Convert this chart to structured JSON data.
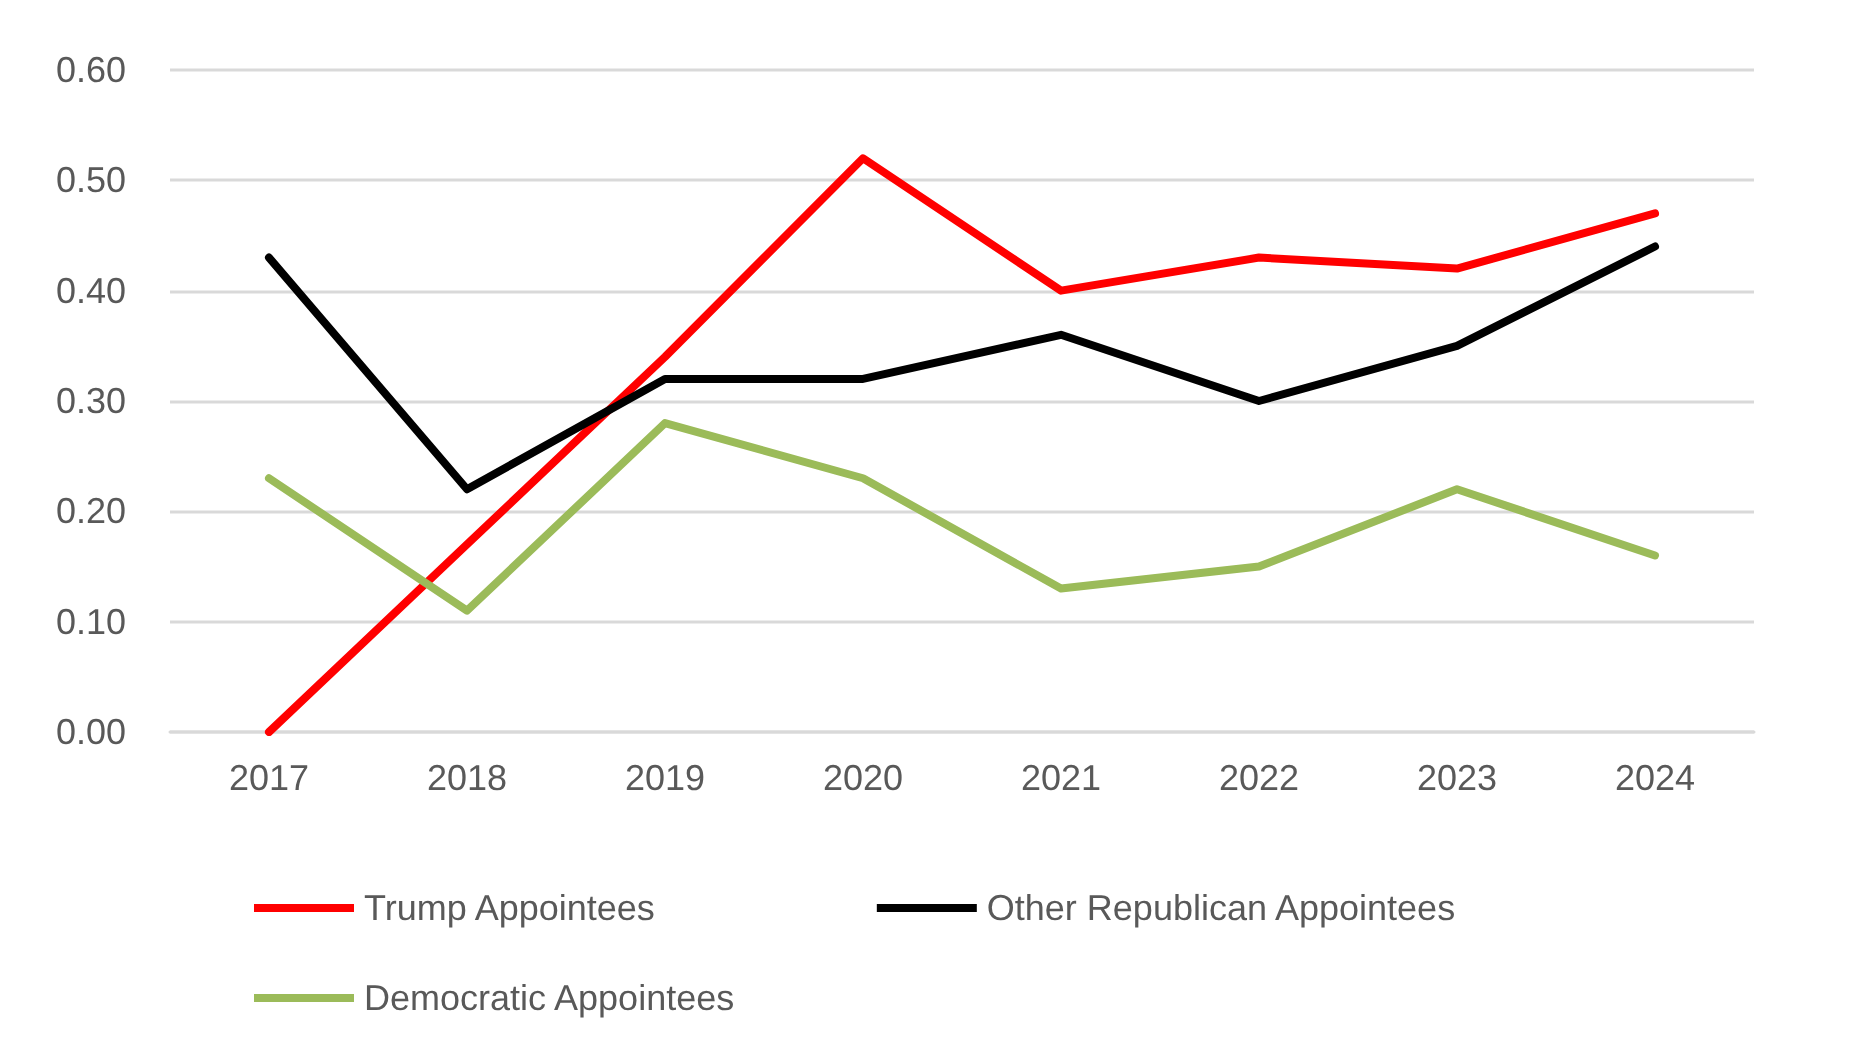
{
  "chart_data": {
    "type": "line",
    "categories": [
      "2017",
      "2018",
      "2019",
      "2020",
      "2021",
      "2022",
      "2023",
      "2024"
    ],
    "series": [
      {
        "name": "Trump Appointees",
        "color": "#ff0000",
        "values": [
          0,
          0.17,
          0.34,
          0.52,
          0.4,
          0.43,
          0.42,
          0.47
        ]
      },
      {
        "name": "Other Republican Appointees",
        "color": "#000000",
        "values": [
          0.43,
          0.22,
          0.32,
          0.32,
          0.36,
          0.3,
          0.35,
          0.44
        ]
      },
      {
        "name": "Democratic Appointees",
        "color": "#9bbb59",
        "values": [
          0.23,
          0.11,
          0.28,
          0.23,
          0.13,
          0.15,
          0.22,
          0.16
        ]
      }
    ],
    "ylim": [
      0,
      0.6
    ],
    "yticks": [
      {
        "value": 0,
        "label": "0.00"
      },
      {
        "value": 0.1,
        "label": "0.10"
      },
      {
        "value": 0.2,
        "label": "0.20"
      },
      {
        "value": 0.3,
        "label": "0.30"
      },
      {
        "value": 0.4,
        "label": "0.40"
      },
      {
        "value": 0.5,
        "label": "0.50"
      },
      {
        "value": 0.6,
        "label": "0.60"
      }
    ],
    "grid": "y",
    "legend": "bottom",
    "marker": "none",
    "line_style": "solid"
  }
}
